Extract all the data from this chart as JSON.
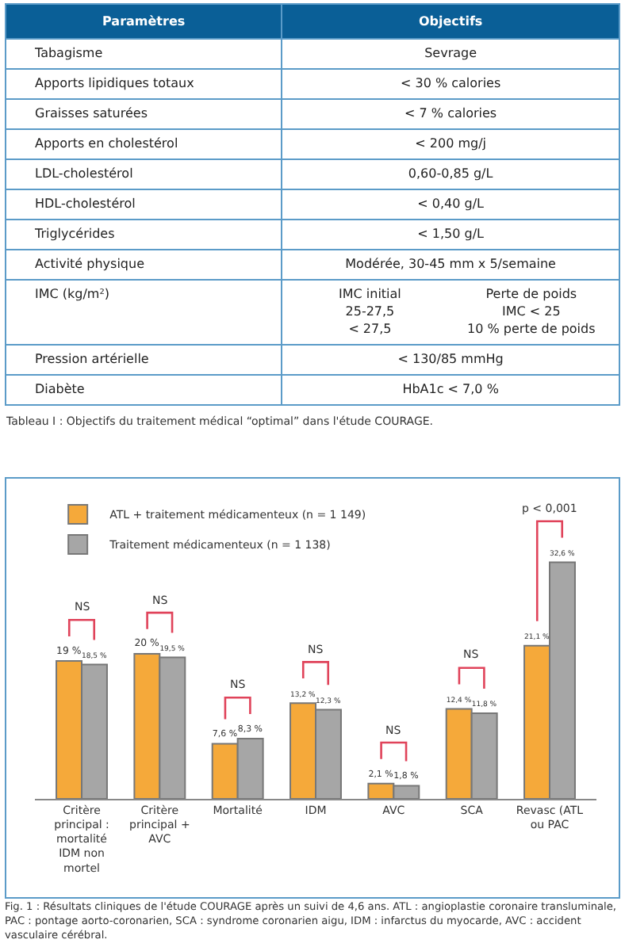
{
  "chart_data": [
    {
      "type": "other",
      "title": "Tableau I : Objectifs du traitement médical “optimal” dans l'étude COURAGE.",
      "annotations": [
        "Paramètres",
        "Objectifs",
        "Tabagisme",
        "Sevrage",
        "Apports lipidiques totaux",
        "< 30 % calories",
        "Graisses saturées",
        "< 7 % calories",
        "Apports en cholestérol",
        "< 200 mg/j",
        "LDL-cholestérol",
        "0,60-0,85 g/L",
        "HDL-cholestérol",
        "< 0,40 g/L",
        "Triglycérides",
        "< 1,50 g/L",
        "Activité physique",
        "Modérée, 30-45 mm x 5/semaine",
        "IMC (kg/m²)",
        "IMC initial\n25-27,5\n< 27,5\tPerte de poids\nIMC < 25\n10 % perte de poids",
        "Pression artérielle",
        "< 130/85 mmHg",
        "Diabète",
        "HbA1c < 7,0 %"
      ]
    },
    {
      "type": "bar",
      "categories": [
        "Critère principal : mortalité IDM non mortel",
        "Critère principal + AVC",
        "Mortalité",
        "IDM",
        "AVC",
        "SCA",
        "Revasc (ATL ou PAC"
      ],
      "series": [
        {
          "name": "ATL + traitement médicamenteux (n = 1 149)",
          "color": "#f5a93a",
          "values": [
            19,
            20,
            7.6,
            13.2,
            2.1,
            12.4,
            21.1
          ],
          "value_labels": [
            "19 %",
            "20 %",
            "7,6 %",
            "13,2 %",
            "2,1 %",
            "12,4 %",
            "21,1 %"
          ]
        },
        {
          "name": "Traitement médicamenteux (n = 1 138)",
          "color": "#a6a6a6",
          "values": [
            18.5,
            19.5,
            8.3,
            12.3,
            1.8,
            11.8,
            32.6
          ],
          "value_labels": [
            "18,5 %",
            "19,5 %",
            "8,3 %",
            "12,3 %",
            "1,8 %",
            "11,8 %",
            "32,6 %"
          ]
        }
      ],
      "legend": "top left",
      "annotations": [
        "NS",
        "NS",
        "NS",
        "NS",
        "NS",
        "NS",
        "p < 0,001",
        "Fig. 1 : Résultats cliniques de l'étude COURAGE après un suivi de 4,6 ans. ATL : angioplastie coronaire transluminale, PAC : pontage aorto-coronarien, SCA : syndrome coronarien aigu, IDM : infarctus du myocarde, AVC : accident vasculaire cérébral."
      ]
    }
  ]
}
